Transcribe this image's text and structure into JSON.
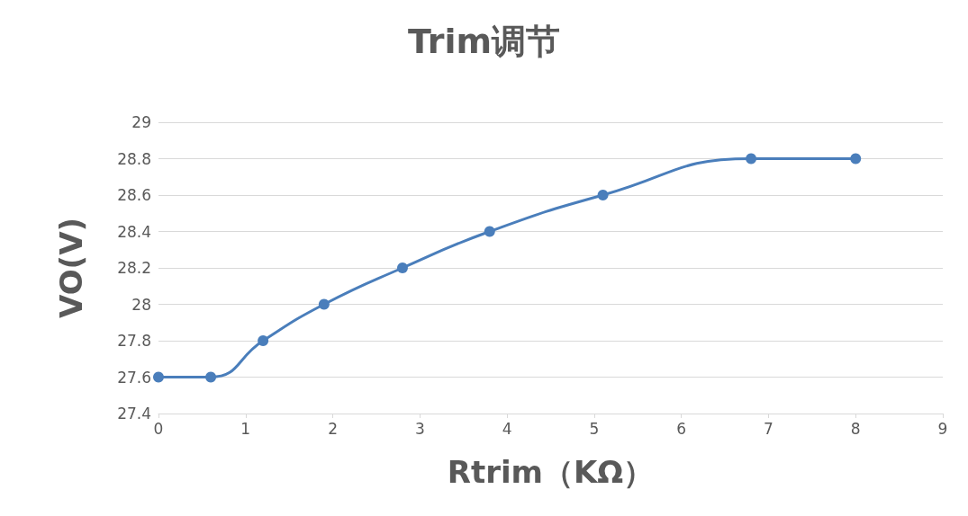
{
  "chart_data": {
    "type": "line",
    "title": "Trim调节",
    "xlabel": "Rtrim（KΩ）",
    "ylabel": "VO(V)",
    "x": [
      0,
      0.6,
      1.2,
      1.9,
      2.8,
      3.8,
      5.1,
      6.8,
      8
    ],
    "series": [
      {
        "color": "#4a7ebb",
        "values": [
          27.6,
          27.6,
          27.8,
          28,
          28.2,
          28.4,
          28.6,
          28.8,
          28.8
        ]
      }
    ],
    "xlim": [
      0,
      9
    ],
    "xticks": [
      0,
      1,
      2,
      3,
      4,
      5,
      6,
      7,
      8,
      9
    ],
    "ylim": [
      27.4,
      29
    ],
    "yticks": [
      27.4,
      27.6,
      27.8,
      28,
      28.2,
      28.4,
      28.6,
      28.8,
      29
    ],
    "grid": "y",
    "marker": "circle",
    "line_style": "solid"
  }
}
